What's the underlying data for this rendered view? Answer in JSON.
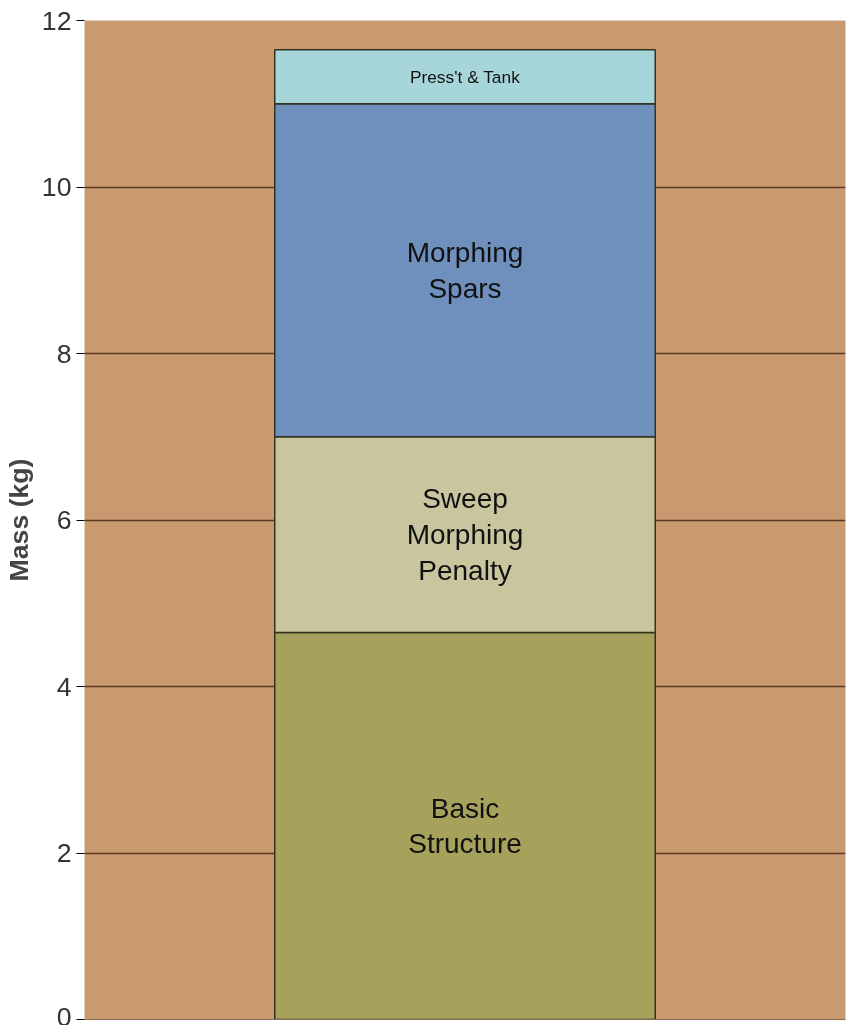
{
  "chart_data": {
    "type": "bar",
    "stacked": true,
    "ylabel": "Mass (kg)",
    "categories": [
      null
    ],
    "series": [
      {
        "name": "Basic\nStructure",
        "color": "#a6a25c",
        "values": [
          4.65
        ]
      },
      {
        "name": "Sweep\nMorphing\nPenalty",
        "color": "#c8c59f",
        "values": [
          2.35
        ]
      },
      {
        "name": "Morphing\nSpars",
        "color": "#6f90bd",
        "values": [
          4.0
        ]
      },
      {
        "name": "Press't & Tank",
        "color": "#a7d6da",
        "values": [
          0.65
        ]
      }
    ],
    "ylim": [
      0,
      12
    ],
    "yticks": [
      0,
      2,
      4,
      6,
      8,
      10,
      12
    ],
    "grid": "y",
    "tick_labels": "y"
  }
}
